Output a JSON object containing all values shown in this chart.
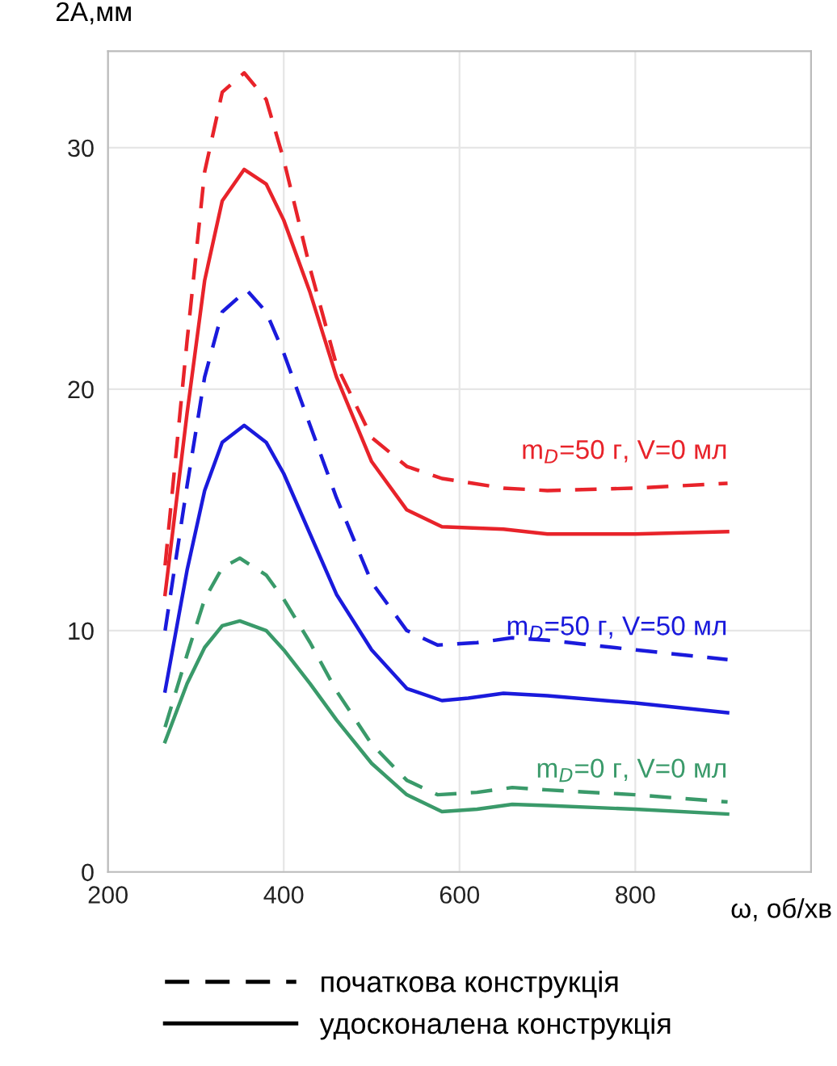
{
  "chart_data": {
    "type": "line",
    "xlabel": "ω, об/хв",
    "ylabel": "2A,мм",
    "xlim": [
      200,
      1000
    ],
    "xticks": [
      200,
      400,
      600,
      800
    ],
    "ylim": [
      0,
      34
    ],
    "yticks": [
      0,
      10,
      20,
      30
    ],
    "grid": true,
    "series": [
      {
        "color": "#e8232a",
        "line_style": "dashed",
        "x": [
          265,
          290,
          310,
          330,
          355,
          380,
          400,
          430,
          460,
          500,
          540,
          580,
          650,
          700,
          800,
          905
        ],
        "values": [
          12.7,
          22,
          29,
          32.3,
          33.1,
          32,
          29.5,
          25,
          21,
          18,
          16.8,
          16.3,
          15.9,
          15.8,
          15.9,
          16.1
        ]
      },
      {
        "color": "#e8232a",
        "line_style": "solid",
        "x": [
          265,
          290,
          310,
          330,
          355,
          380,
          400,
          430,
          460,
          500,
          540,
          580,
          650,
          700,
          800,
          905
        ],
        "values": [
          11.5,
          19,
          24.5,
          27.8,
          29.1,
          28.5,
          27,
          24,
          20.5,
          17,
          15,
          14.3,
          14.2,
          14.0,
          14.0,
          14.1
        ]
      },
      {
        "color": "#1a1adc",
        "line_style": "dashed",
        "x": [
          265,
          290,
          310,
          330,
          358,
          380,
          400,
          430,
          460,
          500,
          540,
          575,
          620,
          660,
          700,
          800,
          905
        ],
        "values": [
          10,
          16,
          20.5,
          23.2,
          24.1,
          23.2,
          21.5,
          18.5,
          15.5,
          12,
          10,
          9.4,
          9.5,
          9.7,
          9.6,
          9.2,
          8.8
        ]
      },
      {
        "color": "#1a1adc",
        "line_style": "solid",
        "x": [
          265,
          290,
          310,
          330,
          355,
          380,
          400,
          430,
          460,
          500,
          540,
          580,
          610,
          650,
          700,
          800,
          905
        ],
        "values": [
          7.5,
          12.5,
          15.8,
          17.8,
          18.5,
          17.8,
          16.5,
          14,
          11.5,
          9.2,
          7.6,
          7.1,
          7.2,
          7.4,
          7.3,
          7.0,
          6.6
        ]
      },
      {
        "color": "#3a9a6a",
        "line_style": "dashed",
        "x": [
          265,
          290,
          310,
          330,
          350,
          380,
          400,
          430,
          460,
          500,
          540,
          575,
          620,
          660,
          700,
          800,
          905
        ],
        "values": [
          6,
          9,
          11.3,
          12.6,
          13.0,
          12.3,
          11.3,
          9.5,
          7.5,
          5.3,
          3.8,
          3.2,
          3.3,
          3.5,
          3.4,
          3.2,
          2.9
        ]
      },
      {
        "color": "#3a9a6a",
        "line_style": "solid",
        "x": [
          265,
          290,
          310,
          330,
          350,
          380,
          400,
          430,
          460,
          500,
          540,
          580,
          620,
          660,
          700,
          800,
          905
        ],
        "values": [
          5.4,
          7.8,
          9.3,
          10.2,
          10.4,
          10.0,
          9.2,
          7.8,
          6.3,
          4.5,
          3.2,
          2.5,
          2.6,
          2.8,
          2.75,
          2.6,
          2.4
        ]
      }
    ],
    "annotations": [
      "m$_{D}$=50 г, V=0 мл",
      "m$_{D}$=50 г, V=50 мл",
      "m$_{D}$=0 г, V=0 мл",
      "початкова конструкція",
      "удосконалена конструкція"
    ]
  }
}
